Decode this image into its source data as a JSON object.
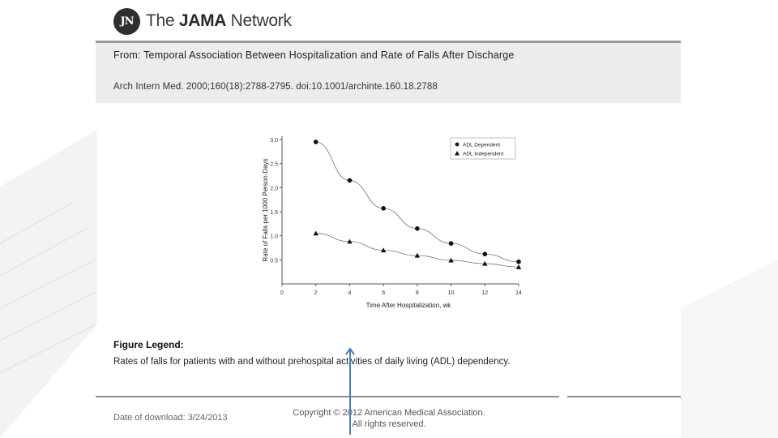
{
  "logo": {
    "badge": "JN",
    "text_prefix": "The ",
    "text_bold": "JAMA",
    "text_suffix": " Network"
  },
  "header": {
    "from_label": "From:",
    "title": "Temporal Association Between Hospitalization and Rate of Falls After Discharge",
    "citation": "Arch Intern Med. 2000;160(18):2788-2795. doi:10.1001/archinte.160.18.2788"
  },
  "chart_data": {
    "type": "line",
    "xlabel": "Time After Hospitalization, wk",
    "ylabel": "Rate of Falls per 1000 Person-Days",
    "x": [
      2,
      4,
      6,
      8,
      10,
      12,
      14
    ],
    "xticks": [
      "0",
      "2",
      "4",
      "6",
      "8",
      "10",
      "12",
      "14"
    ],
    "yticks": [
      "0.5",
      "1.0",
      "1.5",
      "2.0",
      "2.5",
      "3.0"
    ],
    "xlim": [
      0,
      14
    ],
    "ylim": [
      0,
      3.0
    ],
    "legend_position": "top-right",
    "series": [
      {
        "name": "ADL Dependent",
        "marker": "circle",
        "values": [
          2.95,
          2.15,
          1.57,
          1.15,
          0.84,
          0.62,
          0.46
        ]
      },
      {
        "name": "ADL Independent",
        "marker": "triangle",
        "values": [
          1.05,
          0.88,
          0.7,
          0.59,
          0.49,
          0.42,
          0.35
        ]
      }
    ]
  },
  "legend": {
    "label": "Figure Legend:",
    "text": "Rates of falls for patients with and without prehospital activities of daily living (ADL) dependency."
  },
  "footer": {
    "download": "Date of download:  3/24/2013",
    "copyright_line1": "Copyright © 2012 American Medical Association.",
    "copyright_line2": "All rights reserved."
  }
}
